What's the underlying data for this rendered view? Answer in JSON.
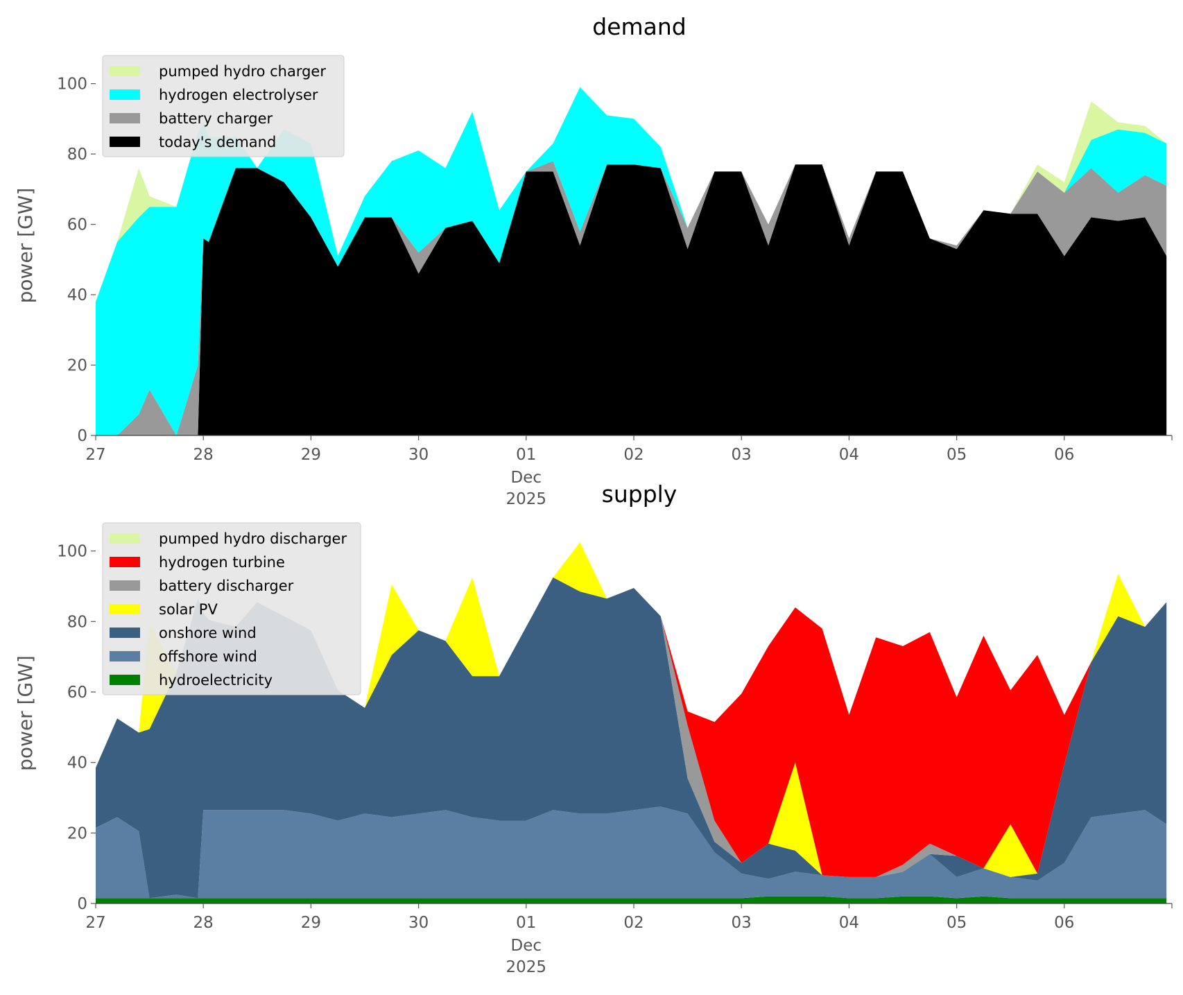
{
  "chart_data": [
    {
      "type": "area",
      "stacked": true,
      "title": "demand",
      "xlabel": "",
      "ylabel": "power [GW]",
      "ylim": [
        0,
        108
      ],
      "yticks": [
        0,
        20,
        40,
        60,
        80,
        100
      ],
      "x": [
        0,
        0.2,
        0.4,
        0.5,
        0.75,
        0.95,
        1.0,
        1.05,
        1.3,
        1.5,
        1.75,
        2.0,
        2.25,
        2.5,
        2.75,
        3.0,
        3.25,
        3.5,
        3.75,
        4.0,
        4.25,
        4.5,
        4.75,
        5.0,
        5.25,
        5.5,
        5.75,
        6.0,
        6.25,
        6.5,
        6.75,
        7.0,
        7.25,
        7.5,
        7.75,
        8.0,
        8.25,
        8.5,
        8.75,
        9.0,
        9.25,
        9.5,
        9.75,
        9.95
      ],
      "xtick_labels": [
        "27",
        "28",
        "29",
        "30",
        "01",
        "02",
        "03",
        "04",
        "05",
        "06"
      ],
      "xtick_sublabels": [
        "Dec",
        "2025"
      ],
      "series": [
        {
          "name": "today's demand",
          "color": "#000000",
          "values": [
            0,
            0,
            0,
            0,
            0,
            0,
            56,
            55,
            76,
            76,
            72,
            62,
            48,
            62,
            62,
            46,
            59,
            61,
            49,
            75,
            75,
            54,
            77,
            77,
            76,
            53,
            75,
            75,
            54,
            77,
            77,
            54,
            75,
            75,
            56,
            53,
            64,
            63,
            63,
            51,
            62,
            61,
            62,
            51
          ]
        },
        {
          "name": "battery charger",
          "color": "#999999",
          "values": [
            0,
            0,
            6,
            13,
            0,
            20,
            0,
            0,
            0,
            0,
            0,
            0,
            0,
            0,
            0,
            6,
            0,
            0,
            0,
            0,
            3,
            4,
            0,
            0,
            0,
            6,
            0,
            0,
            6,
            0,
            0,
            2,
            0,
            0,
            0,
            1,
            0,
            0,
            12,
            18,
            14,
            8,
            12,
            20
          ]
        },
        {
          "name": "hydrogen electrolyser",
          "color": "#00ffff",
          "values": [
            38,
            55,
            56,
            52,
            65,
            66,
            33,
            30,
            9,
            0,
            15,
            21,
            3,
            6,
            16,
            29,
            17,
            31,
            15,
            0,
            5,
            41,
            14,
            13,
            6,
            0,
            0,
            0,
            0,
            0,
            0,
            0,
            0,
            0,
            0,
            0,
            0,
            0,
            0,
            0,
            8,
            18,
            12,
            12
          ]
        },
        {
          "name": "pumped hydro charger",
          "color": "#d9f7a3",
          "values": [
            0,
            0,
            14,
            3,
            0,
            0,
            0,
            0,
            0,
            0,
            0,
            0,
            0,
            0,
            0,
            0,
            0,
            0,
            0,
            0,
            0,
            0,
            0,
            0,
            0,
            0,
            0,
            0,
            0,
            0,
            0,
            0,
            0,
            0,
            0,
            0,
            0,
            0,
            2,
            3,
            11,
            2,
            2,
            0
          ]
        }
      ],
      "legend_order": [
        "pumped hydro charger",
        "hydrogen electrolyser",
        "battery charger",
        "today's demand"
      ],
      "legend_position": "upper-left",
      "grid": false
    },
    {
      "type": "area",
      "stacked": true,
      "title": "supply",
      "xlabel": "",
      "ylabel": "power [GW]",
      "ylim": [
        0,
        108
      ],
      "yticks": [
        0,
        20,
        40,
        60,
        80,
        100
      ],
      "x": [
        0,
        0.2,
        0.4,
        0.5,
        0.75,
        0.95,
        1.0,
        1.05,
        1.3,
        1.5,
        1.75,
        2.0,
        2.25,
        2.5,
        2.75,
        3.0,
        3.25,
        3.5,
        3.75,
        4.0,
        4.25,
        4.5,
        4.75,
        5.0,
        5.25,
        5.5,
        5.75,
        6.0,
        6.25,
        6.5,
        6.75,
        7.0,
        7.25,
        7.5,
        7.75,
        8.0,
        8.25,
        8.5,
        8.75,
        9.0,
        9.25,
        9.5,
        9.75,
        9.95
      ],
      "xtick_labels": [
        "27",
        "28",
        "29",
        "30",
        "01",
        "02",
        "03",
        "04",
        "05",
        "06"
      ],
      "xtick_sublabels": [
        "Dec",
        "2025"
      ],
      "series": [
        {
          "name": "hydroelectricity",
          "color": "#008000",
          "values": [
            1.5,
            1.5,
            1.5,
            1.5,
            1.5,
            1.5,
            1.5,
            1.5,
            1.5,
            1.5,
            1.5,
            1.5,
            1.5,
            1.5,
            1.5,
            1.5,
            1.5,
            1.5,
            1.5,
            1.5,
            1.5,
            1.5,
            1.5,
            1.5,
            1.5,
            1.5,
            1.5,
            1.5,
            2,
            2,
            2,
            1.5,
            1.5,
            2,
            2,
            1.5,
            2,
            1.5,
            1.5,
            1.5,
            1.5,
            1.5,
            1.5,
            1.5
          ]
        },
        {
          "name": "offshore wind",
          "color": "#5b7fa3",
          "values": [
            20,
            23,
            19,
            0,
            1,
            0,
            25,
            25,
            25,
            25,
            25,
            24,
            22,
            24,
            23,
            24,
            25,
            23,
            22,
            22,
            25,
            24,
            24,
            25,
            26,
            24,
            13,
            7,
            5,
            7,
            6,
            6,
            6,
            7,
            12,
            6,
            8,
            6,
            5,
            10,
            23,
            24,
            25,
            21
          ]
        },
        {
          "name": "onshore wind",
          "color": "#3b5f80",
          "values": [
            17,
            28,
            28,
            48,
            63,
            85,
            56,
            54,
            52,
            59,
            55,
            52,
            37,
            30,
            46,
            52,
            48,
            40,
            41,
            55,
            66,
            63,
            61,
            63,
            54,
            10,
            3,
            3,
            10,
            6,
            0,
            0,
            0,
            0,
            0,
            6,
            0,
            0,
            2,
            28,
            44,
            56,
            52,
            63
          ]
        },
        {
          "name": "solar PV",
          "color": "#ffff00",
          "values": [
            0,
            0,
            0,
            30,
            0,
            0,
            0,
            0,
            0,
            0,
            0,
            0,
            0,
            0,
            20,
            0,
            0,
            28,
            0,
            0,
            0,
            14,
            0,
            0,
            0,
            0,
            0,
            0,
            0,
            25,
            0,
            0,
            0,
            0,
            0,
            0,
            0,
            15,
            0,
            0,
            0,
            12,
            0,
            0
          ]
        },
        {
          "name": "battery discharger",
          "color": "#999999",
          "values": [
            0,
            0,
            0,
            0,
            0,
            0,
            0,
            0,
            0,
            0,
            0,
            0,
            0,
            0,
            0,
            0,
            0,
            0,
            0,
            0,
            0,
            0,
            0,
            0,
            0,
            15,
            6,
            0,
            0,
            0,
            0,
            0,
            0,
            2,
            3,
            0,
            0,
            0,
            0,
            0,
            0,
            0,
            0,
            0
          ]
        },
        {
          "name": "hydrogen turbine",
          "color": "#ff0000",
          "values": [
            0,
            0,
            0,
            0,
            0,
            0,
            0,
            0,
            0,
            0,
            0,
            0,
            0,
            0,
            0,
            0,
            0,
            0,
            0,
            0,
            0,
            0,
            0,
            0,
            0,
            4,
            28,
            48,
            56,
            44,
            70,
            46,
            68,
            62,
            60,
            45,
            66,
            38,
            62,
            14,
            0,
            0,
            0,
            0
          ]
        },
        {
          "name": "pumped hydro discharger",
          "color": "#d9f7a3",
          "values": [
            0,
            0,
            0,
            0,
            0,
            0,
            0,
            0,
            0,
            0,
            0,
            0,
            0,
            0,
            0,
            0,
            0,
            0,
            0,
            0,
            0,
            0,
            0,
            0,
            0,
            0,
            0,
            0,
            0,
            0,
            0,
            0,
            0,
            0,
            0,
            0,
            0,
            0,
            0,
            0,
            0,
            0,
            0,
            0
          ]
        }
      ],
      "legend_order": [
        "pumped hydro discharger",
        "hydrogen turbine",
        "battery discharger",
        "solar PV",
        "onshore wind",
        "offshore wind",
        "hydroelectricity"
      ],
      "legend_position": "upper-left",
      "grid": false
    }
  ]
}
